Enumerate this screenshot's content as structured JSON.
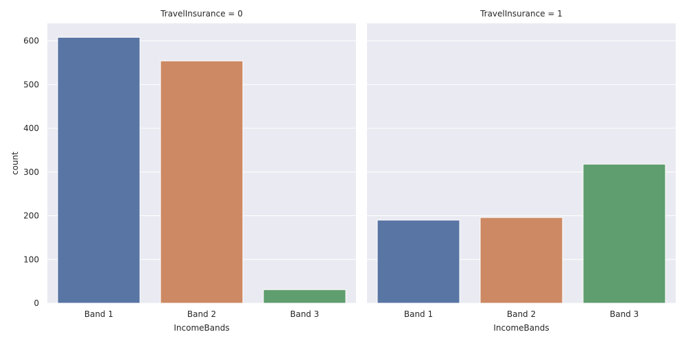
{
  "chart_data": {
    "type": "bar",
    "categories": [
      "Band 1",
      "Band 2",
      "Band 3"
    ],
    "ylabel": "count",
    "ylim": [
      0,
      640
    ],
    "yticks": [
      0,
      100,
      200,
      300,
      400,
      500,
      600
    ],
    "grid": true,
    "colors": [
      "#5875a4",
      "#cc8963",
      "#5f9e6e"
    ],
    "panels": [
      {
        "title": "TravelInsurance = 0",
        "xlabel": "IncomeBands",
        "values": [
          608,
          554,
          31
        ]
      },
      {
        "title": "TravelInsurance = 1",
        "xlabel": "IncomeBands",
        "values": [
          190,
          196,
          318
        ]
      }
    ]
  }
}
